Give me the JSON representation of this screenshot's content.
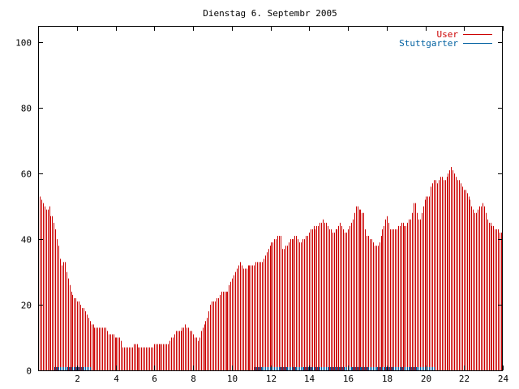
{
  "chart_data": {
    "type": "bar",
    "title": "Dienstag 6. Septembr 2005",
    "xlabel": "",
    "ylabel": "",
    "xlim": [
      0,
      24
    ],
    "ylim": [
      0,
      105
    ],
    "x_ticks": [
      "2",
      "4",
      "6",
      "8",
      "10",
      "12",
      "14",
      "16",
      "18",
      "20",
      "22",
      "24"
    ],
    "y_ticks": [
      "0",
      "20",
      "40",
      "60",
      "80",
      "100"
    ],
    "grid": false,
    "legend_position": "top-right",
    "series": [
      {
        "name": "User",
        "color": "#cc0000",
        "values": [
          57,
          53,
          52,
          51,
          50,
          49,
          49,
          50,
          47,
          47,
          45,
          43,
          40,
          38,
          34,
          32,
          33,
          33,
          30,
          28,
          26,
          24,
          23,
          22,
          22,
          21,
          21,
          20,
          19,
          19,
          18,
          17,
          16,
          15,
          14,
          14,
          13,
          13,
          13,
          13,
          13,
          13,
          13,
          13,
          12,
          11,
          11,
          11,
          11,
          10,
          10,
          10,
          10,
          9,
          7,
          7,
          7,
          7,
          7,
          7,
          7,
          8,
          8,
          8,
          7,
          7,
          7,
          7,
          7,
          7,
          7,
          7,
          7,
          7,
          8,
          8,
          8,
          8,
          8,
          8,
          8,
          8,
          8,
          8,
          9,
          10,
          10,
          11,
          12,
          12,
          12,
          12,
          13,
          13,
          14,
          13,
          13,
          12,
          12,
          11,
          10,
          10,
          9,
          10,
          12,
          13,
          14,
          15,
          16,
          18,
          20,
          21,
          21,
          21,
          22,
          22,
          23,
          24,
          24,
          24,
          24,
          24,
          26,
          27,
          28,
          29,
          30,
          31,
          32,
          33,
          32,
          31,
          31,
          31,
          32,
          32,
          32,
          32,
          32,
          33,
          33,
          33,
          33,
          33,
          34,
          35,
          36,
          37,
          38,
          39,
          39,
          40,
          40,
          41,
          41,
          41,
          37,
          37,
          38,
          38,
          39,
          40,
          40,
          40,
          41,
          41,
          40,
          39,
          39,
          40,
          40,
          41,
          41,
          42,
          43,
          43,
          44,
          43,
          44,
          44,
          45,
          45,
          46,
          45,
          45,
          44,
          43,
          43,
          42,
          42,
          43,
          43,
          44,
          45,
          44,
          43,
          42,
          42,
          43,
          44,
          45,
          46,
          48,
          50,
          50,
          49,
          49,
          48,
          48,
          43,
          41,
          41,
          40,
          40,
          39,
          38,
          38,
          38,
          39,
          41,
          43,
          44,
          46,
          47,
          45,
          43,
          43,
          43,
          43,
          43,
          44,
          44,
          45,
          45,
          44,
          44,
          45,
          46,
          46,
          48,
          51,
          51,
          48,
          46,
          46,
          48,
          50,
          52,
          53,
          53,
          53,
          56,
          57,
          58,
          58,
          57,
          58,
          59,
          59,
          58,
          58,
          59,
          60,
          61,
          62,
          61,
          60,
          59,
          58,
          58,
          57,
          56,
          55,
          55,
          54,
          53,
          52,
          50,
          49,
          48,
          48,
          49,
          50,
          50,
          51,
          50,
          48,
          46,
          45,
          45,
          44,
          44,
          43,
          43,
          43,
          42,
          42
        ]
      },
      {
        "name": "Stuttgarter",
        "color": "#0060a0",
        "values": [
          0,
          0,
          0,
          0,
          0,
          0,
          0,
          0,
          0,
          0,
          0,
          1,
          1,
          1,
          1,
          1,
          1,
          1,
          1,
          1,
          1,
          1,
          1,
          1,
          1,
          1,
          1,
          1,
          1,
          1,
          1,
          1,
          1,
          1,
          1,
          1,
          0,
          0,
          0,
          0,
          0,
          0,
          0,
          0,
          0,
          0,
          0,
          0,
          0,
          0,
          0,
          0,
          0,
          0,
          0,
          0,
          0,
          0,
          0,
          0,
          0,
          0,
          0,
          0,
          0,
          0,
          0,
          0,
          0,
          0,
          0,
          0,
          0,
          0,
          0,
          0,
          0,
          0,
          0,
          0,
          0,
          0,
          0,
          0,
          0,
          0,
          0,
          0,
          0,
          0,
          0,
          0,
          0,
          0,
          0,
          0,
          0,
          0,
          0,
          0,
          0,
          0,
          0,
          0,
          0,
          0,
          0,
          0,
          0,
          0,
          0,
          0,
          0,
          0,
          0,
          0,
          0,
          0,
          0,
          0,
          0,
          0,
          0,
          0,
          0,
          0,
          0,
          0,
          0,
          0,
          0,
          0,
          0,
          0,
          0,
          0,
          0,
          0,
          0,
          0,
          0,
          0,
          0,
          0,
          0,
          0,
          0,
          1,
          1,
          1,
          1,
          1,
          1,
          1,
          1,
          1,
          1,
          1,
          1,
          1,
          1,
          1,
          1,
          1,
          1,
          1,
          1,
          1,
          1,
          1,
          1,
          1,
          1,
          1,
          1,
          1,
          1,
          1,
          1,
          1,
          1,
          1,
          1,
          1,
          1,
          1,
          1,
          1,
          1,
          1,
          1,
          1,
          1,
          1,
          1,
          1,
          1,
          1,
          1,
          1,
          1,
          1,
          1,
          1,
          1,
          1,
          1,
          1,
          1,
          1,
          1,
          1,
          1,
          1,
          1,
          1,
          1,
          1,
          1,
          1,
          1,
          1,
          1,
          1,
          1,
          1,
          1,
          1,
          1,
          1,
          1,
          1,
          1,
          1,
          1,
          1,
          1,
          1,
          1,
          1,
          1,
          1,
          1,
          1,
          1,
          1,
          1,
          1,
          1,
          1,
          1,
          1,
          1,
          1,
          1,
          1,
          1,
          1,
          1,
          1,
          1,
          1,
          1,
          1,
          1,
          1,
          1,
          1,
          1,
          0,
          0,
          0,
          0,
          0,
          0,
          0,
          0,
          0,
          0,
          0,
          0,
          0,
          0,
          0,
          0,
          0,
          0,
          0,
          0,
          0,
          0,
          0,
          0,
          0,
          0,
          0,
          0,
          0,
          0,
          0,
          0,
          0,
          0,
          0,
          0,
          0,
          0,
          0,
          0,
          0,
          0,
          0,
          0,
          0,
          0
        ]
      }
    ]
  }
}
